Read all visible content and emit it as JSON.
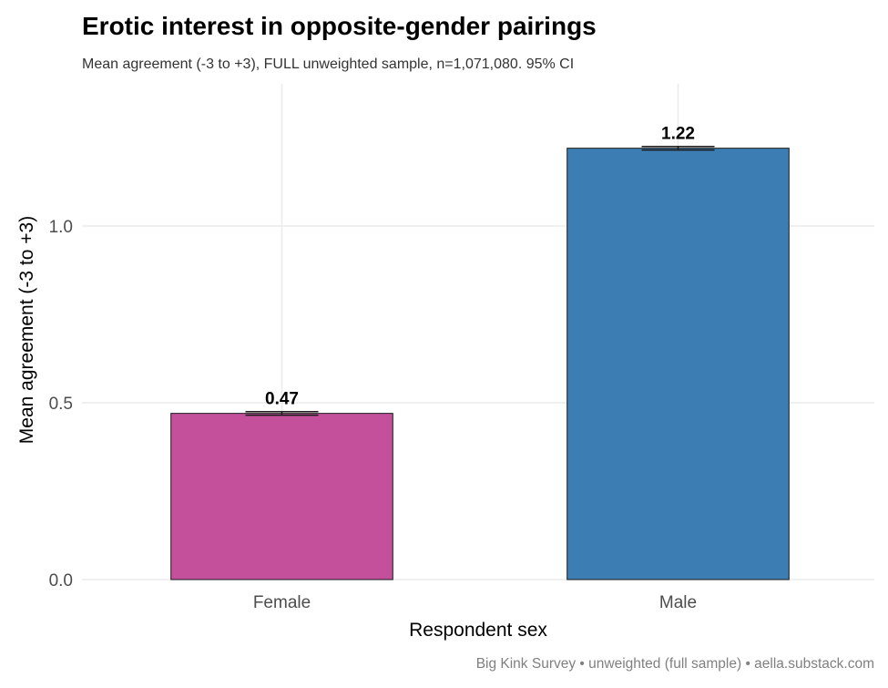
{
  "chart_data": {
    "type": "bar",
    "title": "Erotic interest in opposite-gender pairings",
    "subtitle": "Mean agreement (-3 to +3), FULL unweighted sample, n=1,071,080. 95% CI",
    "xlabel": "Respondent sex",
    "ylabel": "Mean agreement (-3 to +3)",
    "caption": "Big Kink Survey  •  unweighted (full sample)  •  aella.substack.com",
    "categories": [
      "Female",
      "Male"
    ],
    "values": [
      0.47,
      1.22
    ],
    "ci_low": [
      0.465,
      1.215
    ],
    "ci_high": [
      0.475,
      1.225
    ],
    "data_labels": [
      "0.47",
      "1.22"
    ],
    "colors": [
      "#c4509b",
      "#3c7db4"
    ],
    "ylim": [
      0,
      1.26
    ],
    "yticks": [
      0.0,
      0.5,
      1.0
    ],
    "ytick_labels": [
      "0.0",
      "0.5",
      "1.0"
    ],
    "grid": true,
    "legend": "none"
  }
}
